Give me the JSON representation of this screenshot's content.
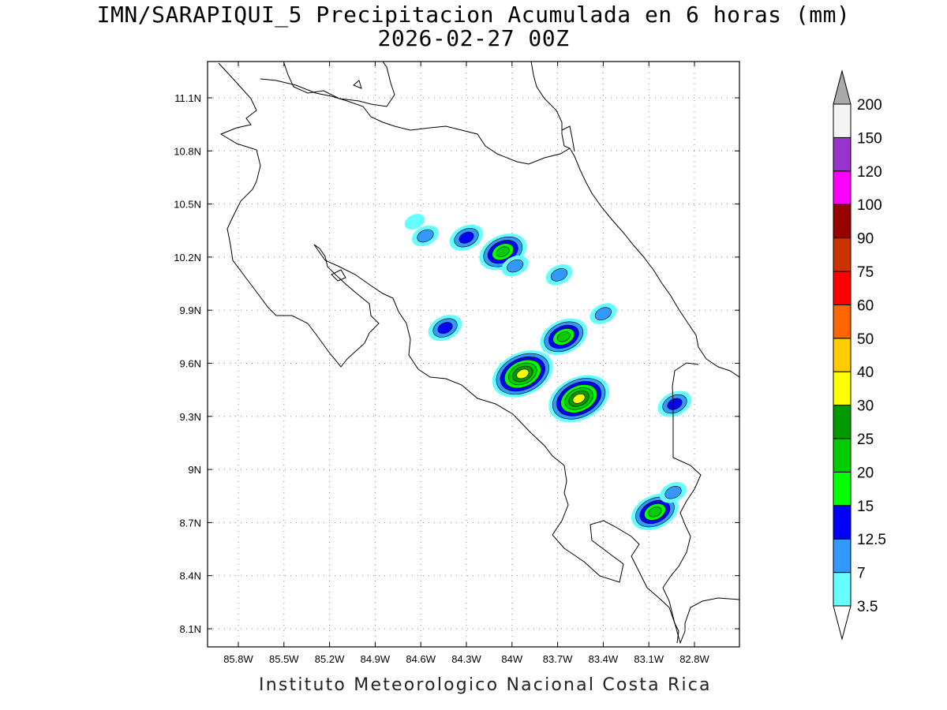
{
  "title": {
    "line1": "IMN/SARAPIQUI_5 Precipitacion Acumulada en 6 horas (mm)",
    "line2": "2026-02-27 00Z"
  },
  "footer": "Instituto Meteorologico Nacional Costa Rica",
  "axes": {
    "lon_labels": [
      "85.8W",
      "85.5W",
      "85.2W",
      "84.9W",
      "84.6W",
      "84.3W",
      "84W",
      "83.7W",
      "83.4W",
      "83.1W",
      "82.8W"
    ],
    "lat_labels": [
      "11.1N",
      "10.8N",
      "10.5N",
      "10.2N",
      "9.9N",
      "9.6N",
      "9.3N",
      "9N",
      "8.7N",
      "8.4N",
      "8.1N"
    ],
    "lon_values": [
      -85.8,
      -85.5,
      -85.2,
      -84.9,
      -84.6,
      -84.3,
      -84.0,
      -83.7,
      -83.4,
      -83.1,
      -82.8
    ],
    "lat_values": [
      11.1,
      10.8,
      10.5,
      10.2,
      9.9,
      9.6,
      9.3,
      9.0,
      8.7,
      8.4,
      8.1
    ],
    "lon_range": [
      -86.0,
      -82.5
    ],
    "lat_range": [
      8.0,
      11.3
    ],
    "grid": "dotted"
  },
  "colorbar": {
    "labels": [
      "3.5",
      "7",
      "12.5",
      "15",
      "20",
      "25",
      "30",
      "40",
      "50",
      "60",
      "75",
      "90",
      "100",
      "120",
      "150",
      "200"
    ],
    "colors": [
      "#66ffff",
      "#3399ff",
      "#0000ff",
      "#00ff00",
      "#00cc00",
      "#009900",
      "#ffff00",
      "#ffcc00",
      "#ff6600",
      "#ff0000",
      "#cc3300",
      "#990000",
      "#ff00ff",
      "#9933cc",
      "#f5f5f5"
    ],
    "over_color": "#aaaaaa",
    "under_color": "#ffffff"
  },
  "rain_cells": [
    {
      "lon": -84.64,
      "lat": 10.4,
      "max_level": 1
    },
    {
      "lon": -84.57,
      "lat": 10.32,
      "max_level": 2
    },
    {
      "lon": -84.3,
      "lat": 10.31,
      "max_level": 3
    },
    {
      "lon": -84.06,
      "lat": 10.23,
      "max_level": 5
    },
    {
      "lon": -83.98,
      "lat": 10.15,
      "max_level": 2
    },
    {
      "lon": -83.69,
      "lat": 10.1,
      "max_level": 2
    },
    {
      "lon": -83.4,
      "lat": 9.88,
      "max_level": 2
    },
    {
      "lon": -84.44,
      "lat": 9.8,
      "max_level": 3
    },
    {
      "lon": -83.66,
      "lat": 9.75,
      "max_level": 5
    },
    {
      "lon": -83.93,
      "lat": 9.54,
      "max_level": 7
    },
    {
      "lon": -83.56,
      "lat": 9.4,
      "max_level": 7
    },
    {
      "lon": -82.93,
      "lat": 9.37,
      "max_level": 3
    },
    {
      "lon": -83.06,
      "lat": 8.76,
      "max_level": 5
    },
    {
      "lon": -82.94,
      "lat": 8.87,
      "max_level": 2
    }
  ]
}
